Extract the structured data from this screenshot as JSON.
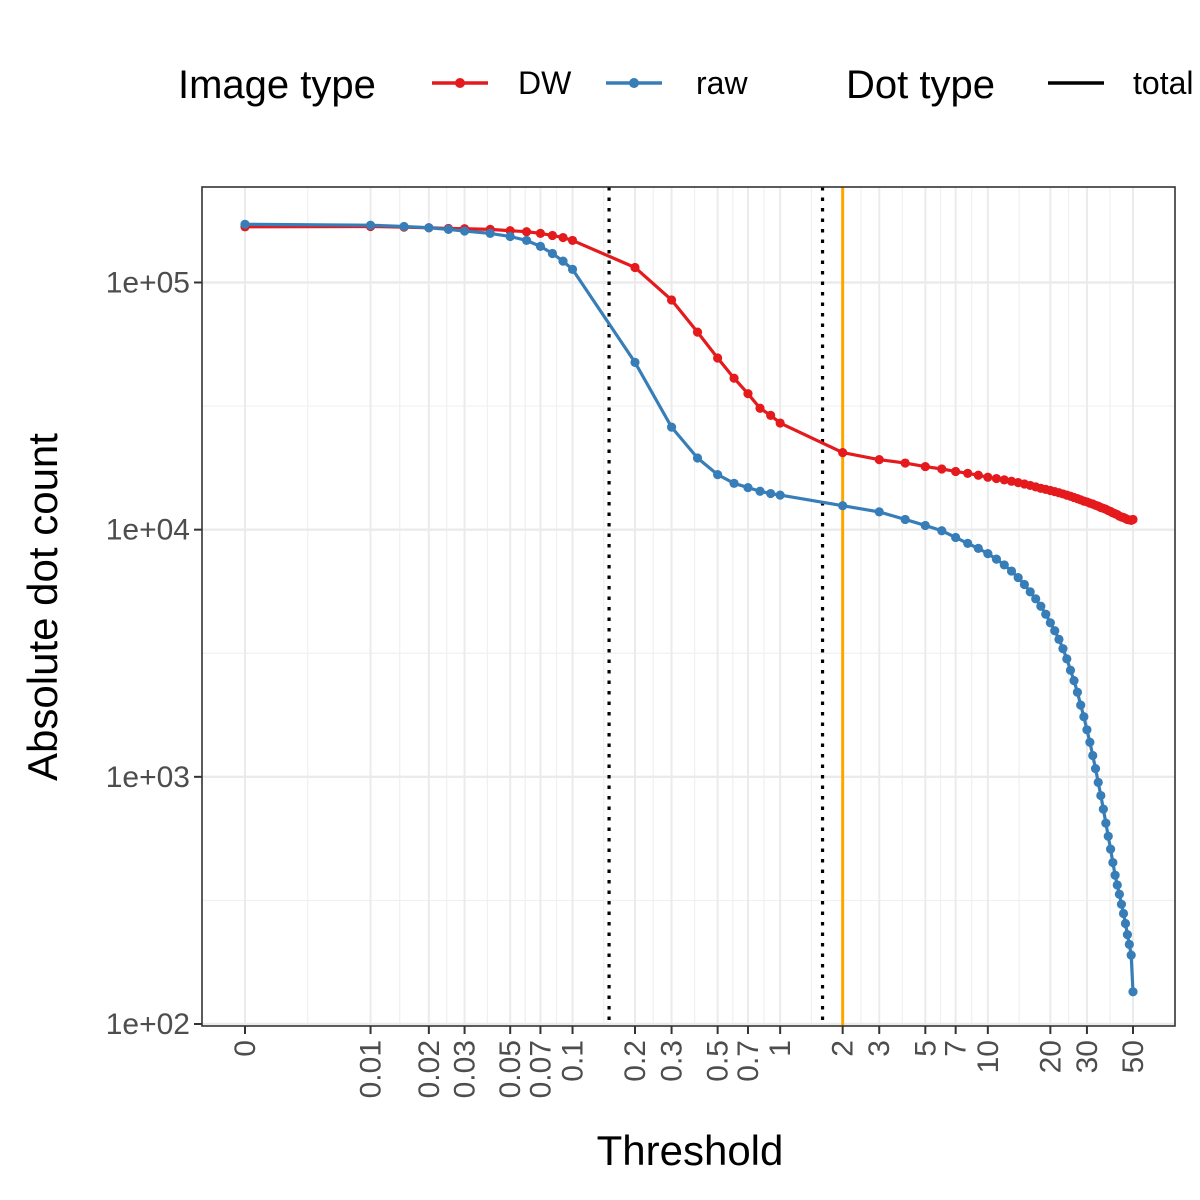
{
  "chart_data": {
    "type": "line",
    "xlabel": "Threshold",
    "ylabel": "Absolute dot count",
    "x_scale": "pseudo-log",
    "y_scale": "log10",
    "ylim": [
      100,
      250000
    ],
    "x_ticks": [
      {
        "value": 0,
        "label": "0"
      },
      {
        "value": 0.01,
        "label": "0.01"
      },
      {
        "value": 0.02,
        "label": "0.02"
      },
      {
        "value": 0.03,
        "label": "0.03"
      },
      {
        "value": 0.05,
        "label": "0.05"
      },
      {
        "value": 0.07,
        "label": "0.07"
      },
      {
        "value": 0.1,
        "label": "0.1"
      },
      {
        "value": 0.2,
        "label": "0.2"
      },
      {
        "value": 0.3,
        "label": "0.3"
      },
      {
        "value": 0.5,
        "label": "0.5"
      },
      {
        "value": 0.7,
        "label": "0.7"
      },
      {
        "value": 1,
        "label": "1"
      },
      {
        "value": 2,
        "label": "2"
      },
      {
        "value": 3,
        "label": "3"
      },
      {
        "value": 5,
        "label": "5"
      },
      {
        "value": 7,
        "label": "7"
      },
      {
        "value": 10,
        "label": "10"
      },
      {
        "value": 20,
        "label": "20"
      },
      {
        "value": 30,
        "label": "30"
      },
      {
        "value": 50,
        "label": "50"
      }
    ],
    "y_ticks": [
      {
        "value": 100,
        "label": "1e+02"
      },
      {
        "value": 1000,
        "label": "1e+03"
      },
      {
        "value": 10000,
        "label": "1e+04"
      },
      {
        "value": 100000,
        "label": "1e+05"
      }
    ],
    "reference_lines": [
      {
        "axis": "x",
        "value": 0.15,
        "style": "dotted",
        "color": "#000000"
      },
      {
        "axis": "x",
        "value": 1.6,
        "style": "dotted",
        "color": "#000000"
      },
      {
        "axis": "x",
        "value": 2,
        "style": "solid",
        "color": "#FFA500"
      }
    ],
    "grid": true,
    "legend": {
      "position": "top",
      "groups": [
        {
          "title": "Image type",
          "entries": [
            {
              "label": "DW",
              "color": "#E41A1C",
              "marker": "line-point"
            },
            {
              "label": "raw",
              "color": "#377EB8",
              "marker": "line-point"
            }
          ]
        },
        {
          "title": "Dot type",
          "entries": [
            {
              "label": "total",
              "color": "#000000",
              "marker": "line"
            }
          ]
        }
      ]
    },
    "series": [
      {
        "name": "DW",
        "color": "#E41A1C",
        "points": [
          [
            0,
            168000
          ],
          [
            0.01,
            168500
          ],
          [
            0.015,
            167500
          ],
          [
            0.02,
            166500
          ],
          [
            0.025,
            165500
          ],
          [
            0.03,
            165000
          ],
          [
            0.04,
            164000
          ],
          [
            0.05,
            162000
          ],
          [
            0.06,
            160500
          ],
          [
            0.07,
            158000
          ],
          [
            0.08,
            155000
          ],
          [
            0.09,
            152000
          ],
          [
            0.1,
            148000
          ],
          [
            0.2,
            115000
          ],
          [
            0.3,
            85000
          ],
          [
            0.4,
            63000
          ],
          [
            0.5,
            49500
          ],
          [
            0.6,
            41000
          ],
          [
            0.7,
            35500
          ],
          [
            0.8,
            31000
          ],
          [
            0.9,
            29000
          ],
          [
            1,
            27000
          ],
          [
            2,
            20500
          ],
          [
            3,
            19200
          ],
          [
            4,
            18600
          ],
          [
            5,
            18000
          ],
          [
            6,
            17600
          ],
          [
            7,
            17200
          ],
          [
            8,
            16900
          ],
          [
            9,
            16600
          ],
          [
            10,
            16300
          ],
          [
            11,
            16100
          ],
          [
            12,
            15900
          ],
          [
            13,
            15700
          ],
          [
            14,
            15500
          ],
          [
            15,
            15300
          ],
          [
            16,
            15100
          ],
          [
            17,
            14900
          ],
          [
            18,
            14700
          ],
          [
            19,
            14550
          ],
          [
            20,
            14400
          ],
          [
            21,
            14250
          ],
          [
            22,
            14100
          ],
          [
            23,
            13950
          ],
          [
            24,
            13800
          ],
          [
            25,
            13650
          ],
          [
            26,
            13500
          ],
          [
            27,
            13350
          ],
          [
            28,
            13200
          ],
          [
            29,
            13050
          ],
          [
            30,
            12950
          ],
          [
            31,
            12800
          ],
          [
            32,
            12700
          ],
          [
            33,
            12550
          ],
          [
            34,
            12450
          ],
          [
            35,
            12300
          ],
          [
            36,
            12200
          ],
          [
            37,
            12100
          ],
          [
            38,
            11950
          ],
          [
            39,
            11850
          ],
          [
            40,
            11700
          ],
          [
            41,
            11600
          ],
          [
            42,
            11500
          ],
          [
            43,
            11350
          ],
          [
            44,
            11250
          ],
          [
            45,
            11200
          ],
          [
            46,
            11100
          ],
          [
            47,
            11000
          ],
          [
            48,
            10950
          ],
          [
            49,
            10900
          ],
          [
            50,
            11000
          ]
        ]
      },
      {
        "name": "raw",
        "color": "#377EB8",
        "points": [
          [
            0,
            172000
          ],
          [
            0.01,
            170500
          ],
          [
            0.015,
            168500
          ],
          [
            0.02,
            166500
          ],
          [
            0.025,
            164000
          ],
          [
            0.03,
            161500
          ],
          [
            0.04,
            158000
          ],
          [
            0.05,
            153500
          ],
          [
            0.06,
            148000
          ],
          [
            0.07,
            140000
          ],
          [
            0.08,
            131000
          ],
          [
            0.09,
            122000
          ],
          [
            0.1,
            113000
          ],
          [
            0.2,
            47500
          ],
          [
            0.3,
            26000
          ],
          [
            0.4,
            19500
          ],
          [
            0.5,
            16700
          ],
          [
            0.6,
            15400
          ],
          [
            0.7,
            14800
          ],
          [
            0.8,
            14300
          ],
          [
            0.9,
            14000
          ],
          [
            1,
            13800
          ],
          [
            2,
            12500
          ],
          [
            3,
            11800
          ],
          [
            4,
            11000
          ],
          [
            5,
            10400
          ],
          [
            6,
            9900
          ],
          [
            7,
            9300
          ],
          [
            8,
            8800
          ],
          [
            9,
            8400
          ],
          [
            10,
            8000
          ],
          [
            11,
            7600
          ],
          [
            12,
            7200
          ],
          [
            13,
            6800
          ],
          [
            14,
            6400
          ],
          [
            15,
            6000
          ],
          [
            16,
            5600
          ],
          [
            17,
            5250
          ],
          [
            18,
            4900
          ],
          [
            19,
            4550
          ],
          [
            20,
            4200
          ],
          [
            21,
            3900
          ],
          [
            22,
            3600
          ],
          [
            23,
            3300
          ],
          [
            24,
            3000
          ],
          [
            25,
            2700
          ],
          [
            26,
            2450
          ],
          [
            27,
            2200
          ],
          [
            28,
            1950
          ],
          [
            29,
            1750
          ],
          [
            30,
            1550
          ],
          [
            31,
            1380
          ],
          [
            32,
            1220
          ],
          [
            33,
            1080
          ],
          [
            34,
            950
          ],
          [
            35,
            840
          ],
          [
            36,
            740
          ],
          [
            37,
            650
          ],
          [
            38,
            575
          ],
          [
            39,
            510
          ],
          [
            40,
            450
          ],
          [
            41,
            400
          ],
          [
            42,
            365
          ],
          [
            43,
            335
          ],
          [
            44,
            305
          ],
          [
            45,
            280
          ],
          [
            46,
            255
          ],
          [
            47,
            230
          ],
          [
            48,
            210
          ],
          [
            49,
            190
          ],
          [
            50,
            135
          ]
        ]
      }
    ]
  }
}
